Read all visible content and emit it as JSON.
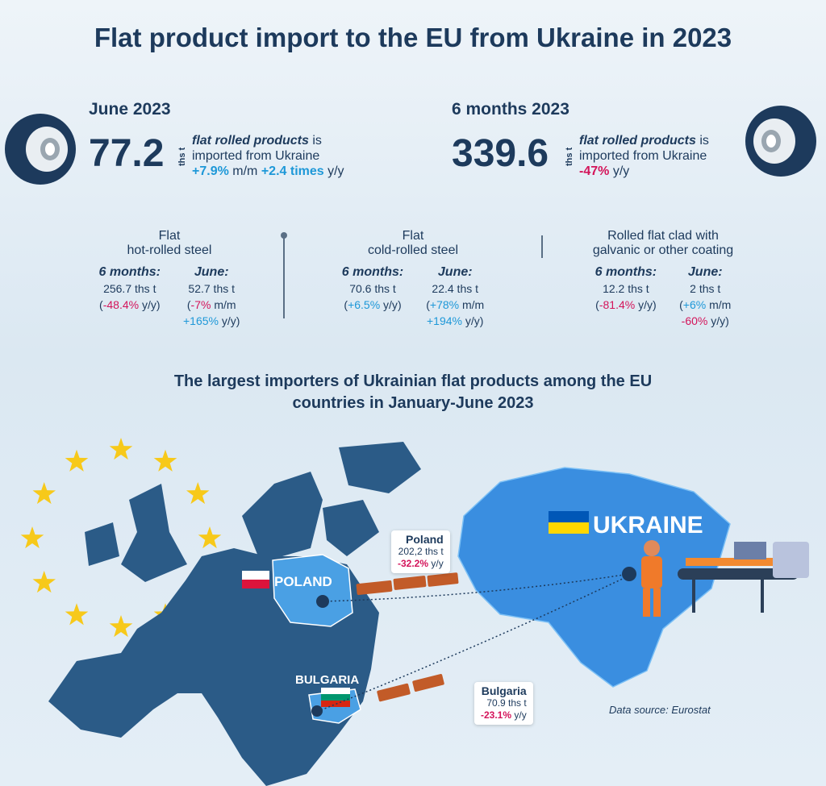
{
  "header": {
    "title": "Flat product import to the EU from Ukraine in 2023"
  },
  "summary": [
    {
      "period": "June 2023",
      "value": "77.2",
      "unit": "ths t",
      "desc_em": "flat rolled products",
      "desc_tail": "is",
      "desc_line2": "imported from Ukraine",
      "changes": [
        {
          "value": "+7.9%",
          "unit": "m/m",
          "color": "#1e98d8"
        },
        {
          "value": "+2.4 times",
          "unit": "y/y",
          "color": "#1e98d8"
        }
      ]
    },
    {
      "period": "6 months 2023",
      "value": "339.6",
      "unit": "ths t",
      "desc_em": "flat rolled products",
      "desc_tail": "is",
      "desc_line2": "imported from Ukraine",
      "changes": [
        {
          "value": "-47%",
          "unit": "y/y",
          "color": "#d4145a"
        }
      ]
    }
  ],
  "products": [
    {
      "name": [
        "Flat",
        "hot-rolled steel"
      ],
      "six_months": {
        "label": "6 months:",
        "value": "256.7 ths t",
        "changes": [
          {
            "value": "-48.4%",
            "unit": "y/y",
            "color": "#d4145a"
          }
        ]
      },
      "june": {
        "label": "June:",
        "value": "52.7 ths t",
        "changes": [
          {
            "value": "-7%",
            "unit": "m/m",
            "color": "#d4145a"
          },
          {
            "value": "+165%",
            "unit": "y/y",
            "color": "#1e98d8"
          }
        ]
      }
    },
    {
      "name": [
        "Flat",
        "cold-rolled steel"
      ],
      "six_months": {
        "label": "6 months:",
        "value": "70.6 ths t",
        "changes": [
          {
            "value": "+6.5%",
            "unit": "y/y",
            "color": "#1e98d8"
          }
        ]
      },
      "june": {
        "label": "June:",
        "value": "22.4 ths t",
        "changes": [
          {
            "value": "+78%",
            "unit": "m/m",
            "color": "#1e98d8"
          },
          {
            "value": "+194%",
            "unit": "y/y",
            "color": "#1e98d8"
          }
        ]
      }
    },
    {
      "name": [
        "Rolled flat clad with",
        "galvanic or other coating"
      ],
      "six_months": {
        "label": "6 months:",
        "value": "12.2 ths t",
        "changes": [
          {
            "value": "-81.4%",
            "unit": "y/y",
            "color": "#d4145a"
          }
        ]
      },
      "june": {
        "label": "June:",
        "value": "2 ths t",
        "changes": [
          {
            "value": "+6%",
            "unit": "m/m",
            "color": "#1e98d8"
          },
          {
            "value": "-60%",
            "unit": "y/y",
            "color": "#d4145a"
          }
        ]
      }
    }
  ],
  "map": {
    "title": [
      "The largest importers of Ukrainian flat products among the EU",
      "countries in January-June 2023"
    ],
    "labels": {
      "ukraine": "UKRAINE",
      "poland": "POLAND",
      "bulgaria": "BULGARIA"
    },
    "callouts": [
      {
        "country": "Poland",
        "value": "202,2 ths t",
        "change": "-32.2%",
        "unit": "y/y"
      },
      {
        "country": "Bulgaria",
        "value": "70.9 ths t",
        "change": "-23.1%",
        "unit": "y/y"
      }
    ],
    "source": "Data source: Eurostat"
  }
}
